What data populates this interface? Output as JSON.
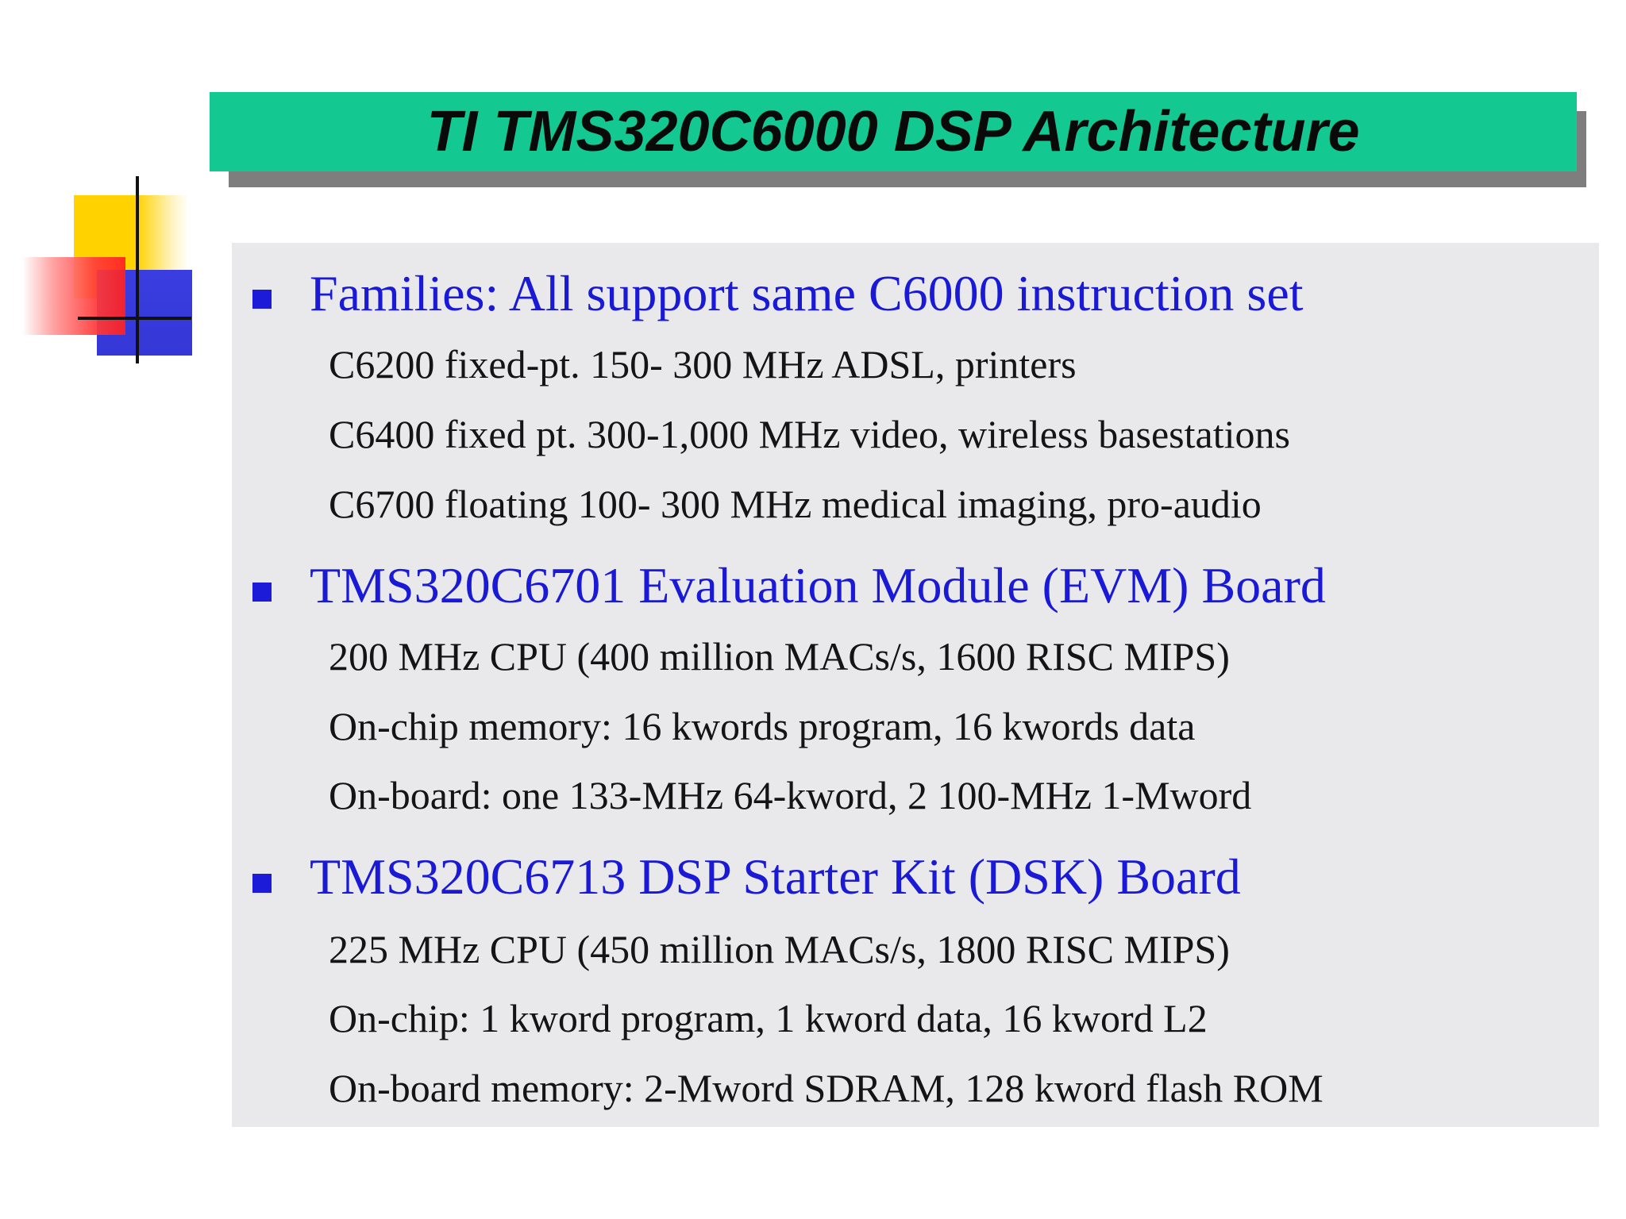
{
  "slide": {
    "title": "TI TMS320C6000 DSP Architecture",
    "bullets": [
      {
        "text": "Families: All support same C6000 instruction set",
        "sub": [
          "C6200 fixed-pt. 150-   300 MHz ADSL, printers",
          "C6400 fixed pt. 300-1,000 MHz video, wireless basestations",
          "C6700 floating  100-   300 MHz medical imaging, pro-audio"
        ]
      },
      {
        "text": "TMS320C6701 Evaluation Module (EVM) Board",
        "sub": [
          "200 MHz CPU (400 million MACs/s, 1600 RISC MIPS)",
          "On-chip memory: 16 kwords program, 16 kwords data",
          "On-board: one 133-MHz 64-kword, 2 100-MHz 1-Mword"
        ]
      },
      {
        "text": "TMS320C6713 DSP Starter Kit (DSK) Board",
        "sub": [
          "225 MHz CPU (450 million MACs/s, 1800 RISC MIPS)",
          "On-chip: 1 kword program, 1 kword data, 16 kword L2",
          "On-board memory: 2-Mword SDRAM, 128 kword flash ROM"
        ]
      }
    ]
  },
  "colors": {
    "title_bar": "#13c991",
    "bullet_text": "#1a1ad6",
    "panel_bg": "#e9e9ec"
  }
}
